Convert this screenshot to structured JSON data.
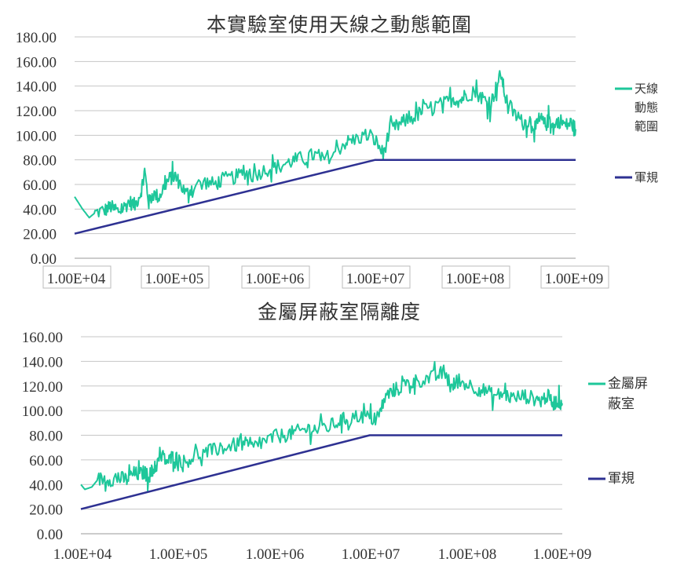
{
  "colors": {
    "series": "#1ec79a",
    "reg": "#2e3192",
    "grid": "#c6c6c6"
  },
  "chart_data": [
    {
      "type": "line",
      "title": "本實驗室使用天線之動態範圍",
      "xscale": "log",
      "xlim": [
        "1.00E+04",
        "1.00E+09"
      ],
      "ylim": [
        0,
        180
      ],
      "yticks": [
        "0.00",
        "20.00",
        "40.00",
        "60.00",
        "80.00",
        "100.00",
        "120.00",
        "140.00",
        "160.00",
        "180.00"
      ],
      "xticks": [
        "1.00E+04",
        "1.00E+05",
        "1.00E+06",
        "1.00E+07",
        "1.00E+08",
        "1.00E+09"
      ],
      "grid": true,
      "legend_position": "right",
      "series": [
        {
          "name": "天線動態範圍",
          "legend_lines": [
            "天線",
            "動態",
            "範圍"
          ],
          "color": "#1ec79a",
          "points": [
            [
              10000.0,
              50
            ],
            [
              12000.0,
              40
            ],
            [
              14000.0,
              33
            ],
            [
              16000.0,
              37
            ],
            [
              20000.0,
              39
            ],
            [
              23000.0,
              42
            ],
            [
              26000.0,
              38
            ],
            [
              30000.0,
              40
            ],
            [
              35000.0,
              46
            ],
            [
              40000.0,
              43
            ],
            [
              46000.0,
              54
            ],
            [
              50000.0,
              71
            ],
            [
              55000.0,
              45
            ],
            [
              60000.0,
              52
            ],
            [
              70000.0,
              50
            ],
            [
              80000.0,
              60
            ],
            [
              90000.0,
              65
            ],
            [
              100000.0,
              67
            ],
            [
              110000.0,
              62
            ],
            [
              130000.0,
              52
            ],
            [
              150000.0,
              58
            ],
            [
              200000.0,
              62
            ],
            [
              250000.0,
              60
            ],
            [
              300000.0,
              64
            ],
            [
              400000.0,
              66
            ],
            [
              500000.0,
              70
            ],
            [
              600000.0,
              67
            ],
            [
              800000.0,
              72
            ],
            [
              1000000.0,
              74
            ],
            [
              1300000.0,
              77
            ],
            [
              1600000.0,
              80
            ],
            [
              2000000.0,
              82
            ],
            [
              2500000.0,
              84
            ],
            [
              3000000.0,
              80
            ],
            [
              4000000.0,
              86
            ],
            [
              5000000.0,
              94
            ],
            [
              6000000.0,
              96
            ],
            [
              8000000.0,
              100
            ],
            [
              10000000.0,
              96
            ],
            [
              12000000.0,
              85
            ],
            [
              14000000.0,
              104
            ],
            [
              17000000.0,
              108
            ],
            [
              20000000.0,
              112
            ],
            [
              25000000.0,
              115
            ],
            [
              30000000.0,
              120
            ],
            [
              40000000.0,
              124
            ],
            [
              50000000.0,
              126
            ],
            [
              60000000.0,
              130
            ],
            [
              70000000.0,
              128
            ],
            [
              80000000.0,
              133
            ],
            [
              100000000.0,
              135
            ],
            [
              120000000.0,
              130
            ],
            [
              140000000.0,
              124
            ],
            [
              160000000.0,
              138
            ],
            [
              180000000.0,
              150
            ],
            [
              200000000.0,
              130
            ],
            [
              250000000.0,
              116
            ],
            [
              300000000.0,
              110
            ],
            [
              350000000.0,
              112
            ],
            [
              400000000.0,
              106
            ],
            [
              450000000.0,
              113
            ],
            [
              500000000.0,
              108
            ],
            [
              550000000.0,
              114
            ],
            [
              600000000.0,
              106
            ],
            [
              700000000.0,
              112
            ],
            [
              800000000.0,
              108
            ],
            [
              900000000.0,
              110
            ],
            [
              1000000000.0,
              105
            ]
          ],
          "noise": 6
        },
        {
          "name": "軍規",
          "color": "#2e3192",
          "points": [
            [
              10000.0,
              20
            ],
            [
              10000000.0,
              80
            ],
            [
              1000000000.0,
              80
            ]
          ]
        }
      ]
    },
    {
      "type": "line",
      "title": "金屬屏蔽室隔離度",
      "xscale": "log",
      "xlim": [
        "1.00E+04",
        "1.00E+09"
      ],
      "ylim": [
        0,
        160
      ],
      "yticks": [
        "0.00",
        "20.00",
        "40.00",
        "60.00",
        "80.00",
        "100.00",
        "120.00",
        "140.00",
        "160.00"
      ],
      "xticks": [
        "1.00E+04",
        "1.00E+05",
        "1.00E+06",
        "1.00E+07",
        "1.00E+08",
        "1.00E+09"
      ],
      "grid": true,
      "legend_position": "right",
      "series": [
        {
          "name": "金屬屏蔽室",
          "legend_lines": [
            "金屬屏",
            "蔽室"
          ],
          "color": "#1ec79a",
          "points": [
            [
              10000.0,
              40
            ],
            [
              11000.0,
              36
            ],
            [
              13000.0,
              38
            ],
            [
              15000.0,
              44
            ],
            [
              18000.0,
              45
            ],
            [
              22000.0,
              44
            ],
            [
              26000.0,
              45
            ],
            [
              30000.0,
              44
            ],
            [
              35000.0,
              49
            ],
            [
              40000.0,
              48
            ],
            [
              46000.0,
              50
            ],
            [
              50000.0,
              46
            ],
            [
              55000.0,
              51
            ],
            [
              60000.0,
              55
            ],
            [
              70000.0,
              63
            ],
            [
              80000.0,
              58
            ],
            [
              90000.0,
              63
            ],
            [
              100000.0,
              61
            ],
            [
              120000.0,
              58
            ],
            [
              150000.0,
              63
            ],
            [
              200000.0,
              66
            ],
            [
              250000.0,
              68
            ],
            [
              300000.0,
              70
            ],
            [
              400000.0,
              72
            ],
            [
              500000.0,
              73
            ],
            [
              600000.0,
              70
            ],
            [
              800000.0,
              75
            ],
            [
              1000000.0,
              78
            ],
            [
              1300000.0,
              80
            ],
            [
              1600000.0,
              82
            ],
            [
              2000000.0,
              84
            ],
            [
              2500000.0,
              86
            ],
            [
              3000000.0,
              84
            ],
            [
              4000000.0,
              88
            ],
            [
              5000000.0,
              92
            ],
            [
              6000000.0,
              94
            ],
            [
              8000000.0,
              96
            ],
            [
              10000000.0,
              94
            ],
            [
              12000000.0,
              92
            ],
            [
              14000000.0,
              108
            ],
            [
              17000000.0,
              116
            ],
            [
              20000000.0,
              118
            ],
            [
              25000000.0,
              122
            ],
            [
              30000000.0,
              124
            ],
            [
              40000000.0,
              126
            ],
            [
              50000000.0,
              128
            ],
            [
              60000000.0,
              132
            ],
            [
              70000000.0,
              118
            ],
            [
              80000000.0,
              124
            ],
            [
              100000000.0,
              122
            ],
            [
              130000000.0,
              118
            ],
            [
              160000000.0,
              116
            ],
            [
              200000000.0,
              112
            ],
            [
              250000000.0,
              114
            ],
            [
              300000000.0,
              110
            ],
            [
              400000000.0,
              112
            ],
            [
              500000000.0,
              110
            ],
            [
              600000000.0,
              108
            ],
            [
              700000000.0,
              112
            ],
            [
              800000000.0,
              106
            ],
            [
              900000000.0,
              108
            ],
            [
              1000000000.0,
              106
            ]
          ],
          "noise": 6
        },
        {
          "name": "軍規",
          "color": "#2e3192",
          "points": [
            [
              10000.0,
              20
            ],
            [
              10000000.0,
              80
            ],
            [
              1000000000.0,
              80
            ]
          ]
        }
      ]
    }
  ]
}
